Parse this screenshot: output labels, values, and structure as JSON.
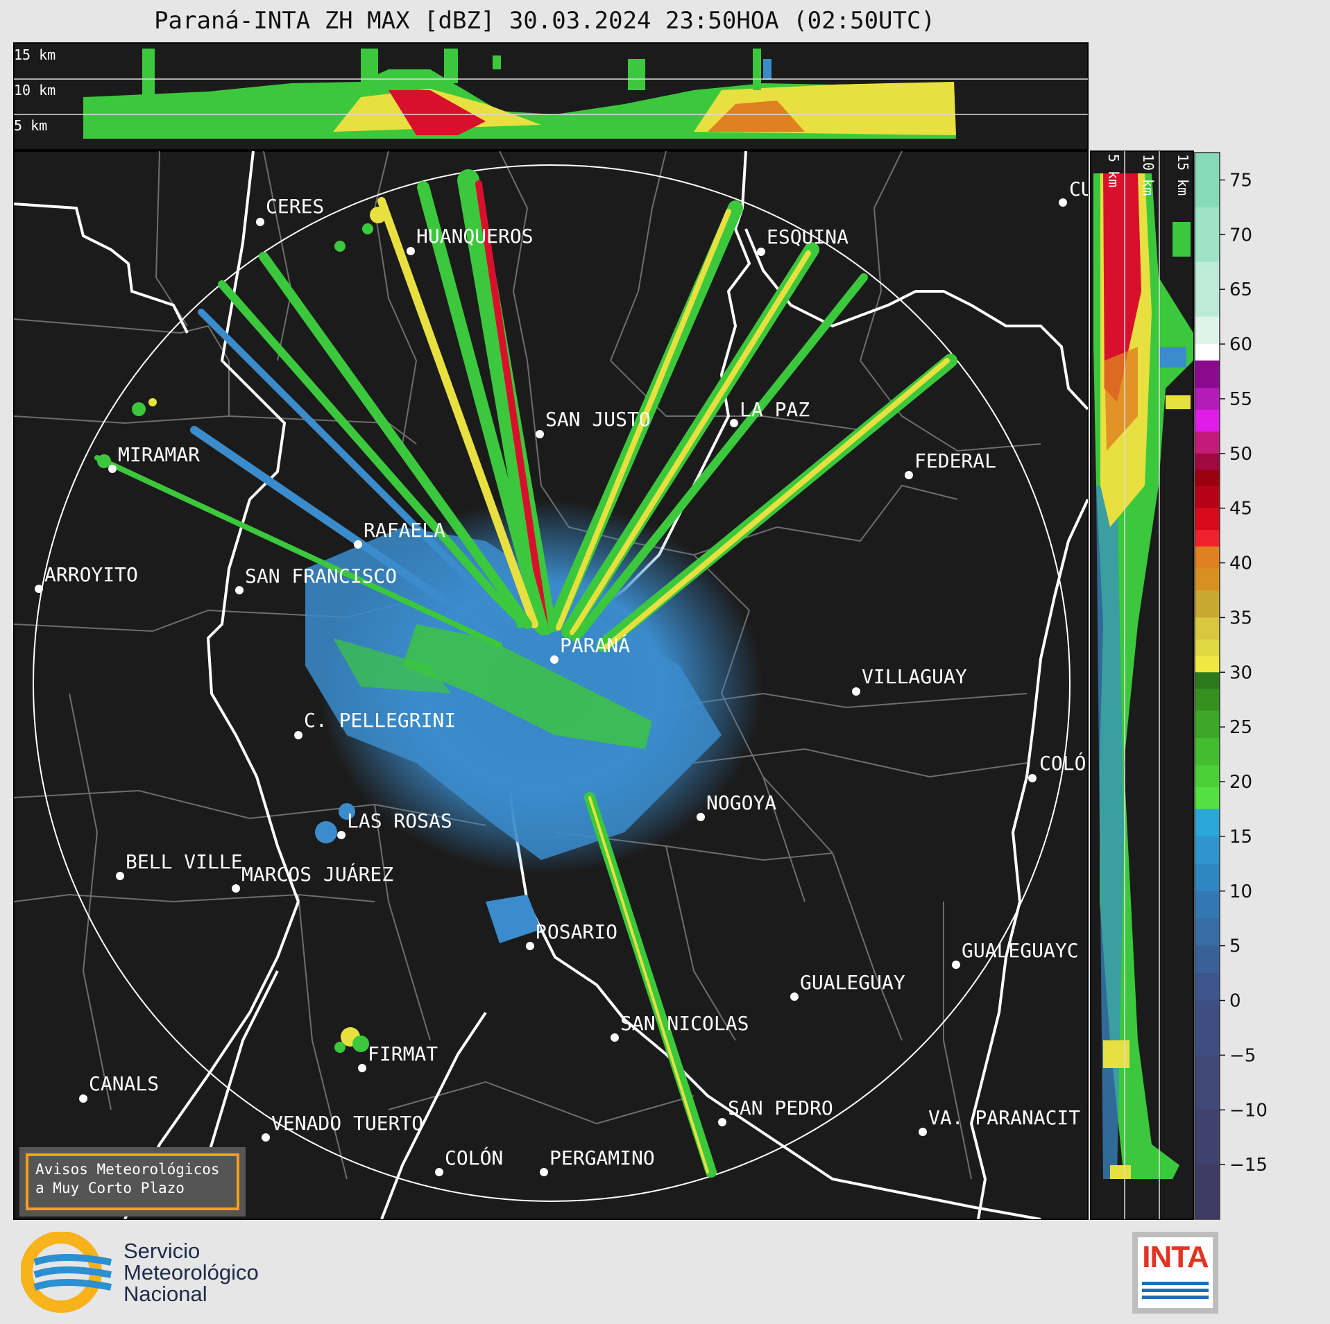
{
  "title": "Paraná-INTA ZH MAX [dBZ] 30.03.2024 23:50HOA (02:50UTC)",
  "height_labels": [
    "15 km",
    "10 km",
    "5 km"
  ],
  "cities": [
    {
      "name": "CERES"
    },
    {
      "name": "HUANQUEROS"
    },
    {
      "name": "ESQUINA"
    },
    {
      "name": "CU"
    },
    {
      "name": "SAN JUSTO"
    },
    {
      "name": "LA PAZ"
    },
    {
      "name": "MIRAMAR"
    },
    {
      "name": "FEDERAL"
    },
    {
      "name": "RAFAELA"
    },
    {
      "name": "ARROYITO"
    },
    {
      "name": "SAN FRANCISCO"
    },
    {
      "name": "PARANÁ"
    },
    {
      "name": "VILLAGUAY"
    },
    {
      "name": "C. PELLEGRINI"
    },
    {
      "name": "COLÓ"
    },
    {
      "name": "NOGOYA"
    },
    {
      "name": "LAS ROSAS"
    },
    {
      "name": "BELL VILLE"
    },
    {
      "name": "MARCOS JUÁREZ"
    },
    {
      "name": "ROSARIO"
    },
    {
      "name": "GUALEGUAYC"
    },
    {
      "name": "GUALEGUAY"
    },
    {
      "name": "SAN NICOLAS"
    },
    {
      "name": "FIRMAT"
    },
    {
      "name": "CANALS"
    },
    {
      "name": "SAN PEDRO"
    },
    {
      "name": "VENADO TUERTO"
    },
    {
      "name": "VA. PARANACIT"
    },
    {
      "name": "COLÓN"
    },
    {
      "name": "PERGAMINO"
    }
  ],
  "colorbar": {
    "unit": "dBZ",
    "ticks": [
      "75",
      "70",
      "65",
      "60",
      "55",
      "50",
      "45",
      "40",
      "35",
      "30",
      "25",
      "20",
      "15",
      "10",
      "5",
      "0",
      "−5",
      "−10",
      "−15"
    ]
  },
  "warning_box": {
    "line1": "Avisos Meteorológicos",
    "line2": "a Muy Corto Plazo"
  },
  "smn_logo": {
    "line1": "Servicio",
    "line2": "Meteorológico",
    "line3": "Nacional"
  },
  "inta_logo": {
    "text": "INTA"
  },
  "colors": {
    "background": "#1b1b1b",
    "weak_echo": "#3a8cc8",
    "moderate_echo": "#3cc83c",
    "strong_echo": "#e8e040",
    "intense_echo": "#d8102c"
  }
}
